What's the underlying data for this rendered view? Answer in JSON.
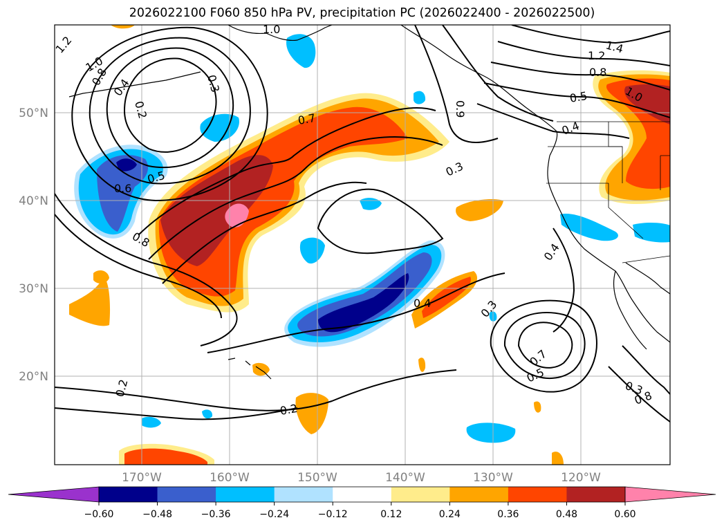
{
  "title": "2026022100 F060 850 hPa PV, precipitation PC (2026022400 - 2026022500)",
  "axes": {
    "lat_labels": [
      "50°N",
      "40°N",
      "30°N",
      "20°N"
    ],
    "lon_labels": [
      "170°W",
      "160°W",
      "150°W",
      "140°W",
      "130°W",
      "120°W"
    ]
  },
  "contour_labels": [
    "1.2",
    "1.0",
    "0.8",
    "0.4",
    "0.3",
    "0.2",
    "1.0",
    "0.6",
    "0.5",
    "0.8",
    "0.7",
    "0.9",
    "0.3",
    "1.4",
    "1.2",
    "0.8",
    "1.0",
    "0.5",
    "0.4",
    "0.4",
    "0.4",
    "0.3",
    "0.7",
    "0.5",
    "0.2",
    "0.2",
    "0.3",
    "0.8"
  ],
  "colorbar": {
    "ticks": [
      "−0.60",
      "−0.48",
      "−0.36",
      "−0.24",
      "−0.12",
      "0.12",
      "0.24",
      "0.36",
      "0.48",
      "0.60"
    ],
    "levels": [
      -0.6,
      -0.48,
      -0.36,
      -0.24,
      -0.12,
      0.12,
      0.24,
      0.36,
      0.48,
      0.6
    ],
    "colors": [
      "#9a32cd",
      "#00008b",
      "#3a5fcd",
      "#00bfff",
      "#b0e2ff",
      "#ffffff",
      "#ffec8b",
      "#ffa500",
      "#ff4500",
      "#b22222",
      "#ff82ab"
    ],
    "extend": "both"
  },
  "colors": {
    "gridline": "#b0b0b0",
    "axis_label": "#808080"
  }
}
